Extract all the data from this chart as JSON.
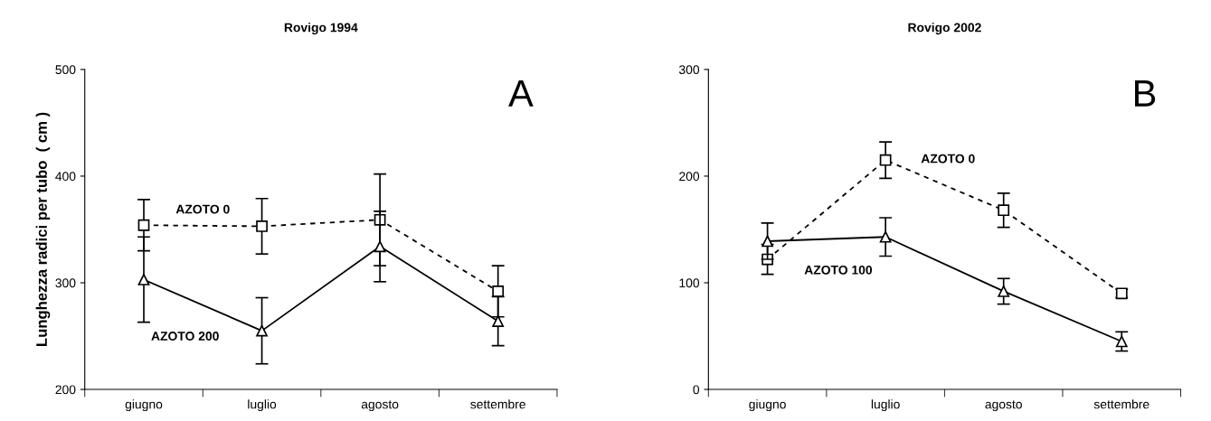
{
  "chart_data": [
    {
      "type": "line",
      "title": "Rovigo 1994",
      "ylabel": "Lunghezza radici per tubo  ( cm )",
      "categories": [
        "giugno",
        "luglio",
        "agosto",
        "settembre"
      ],
      "ylim": [
        200,
        500
      ],
      "yticks": [
        200,
        300,
        400,
        500
      ],
      "annotations": [
        "A"
      ],
      "grid": false,
      "legend": false,
      "series": [
        {
          "name": "AZOTO 0",
          "color": "#000000",
          "marker": "square",
          "line_style": "dashed",
          "values": [
            354,
            353,
            359,
            292
          ],
          "errors": [
            24,
            26,
            43,
            24
          ]
        },
        {
          "name": "AZOTO 200",
          "color": "#000000",
          "marker": "triangle",
          "line_style": "solid",
          "values": [
            303,
            255,
            334,
            264
          ],
          "errors": [
            40,
            31,
            33,
            23
          ]
        }
      ]
    },
    {
      "type": "line",
      "title": "Rovigo 2002",
      "categories": [
        "giugno",
        "luglio",
        "agosto",
        "settembre"
      ],
      "ylim": [
        0,
        300
      ],
      "yticks": [
        0,
        100,
        200,
        300
      ],
      "annotations": [
        "B"
      ],
      "grid": false,
      "legend": false,
      "series": [
        {
          "name": "AZOTO 0",
          "color": "#000000",
          "marker": "square",
          "line_style": "dashed",
          "values": [
            122,
            215,
            168,
            90
          ],
          "errors": [
            14,
            17,
            16,
            4
          ]
        },
        {
          "name": "AZOTO 100",
          "color": "#000000",
          "marker": "triangle",
          "line_style": "solid",
          "values": [
            139,
            143,
            92,
            45
          ],
          "errors": [
            17,
            18,
            12,
            9
          ]
        }
      ]
    }
  ]
}
